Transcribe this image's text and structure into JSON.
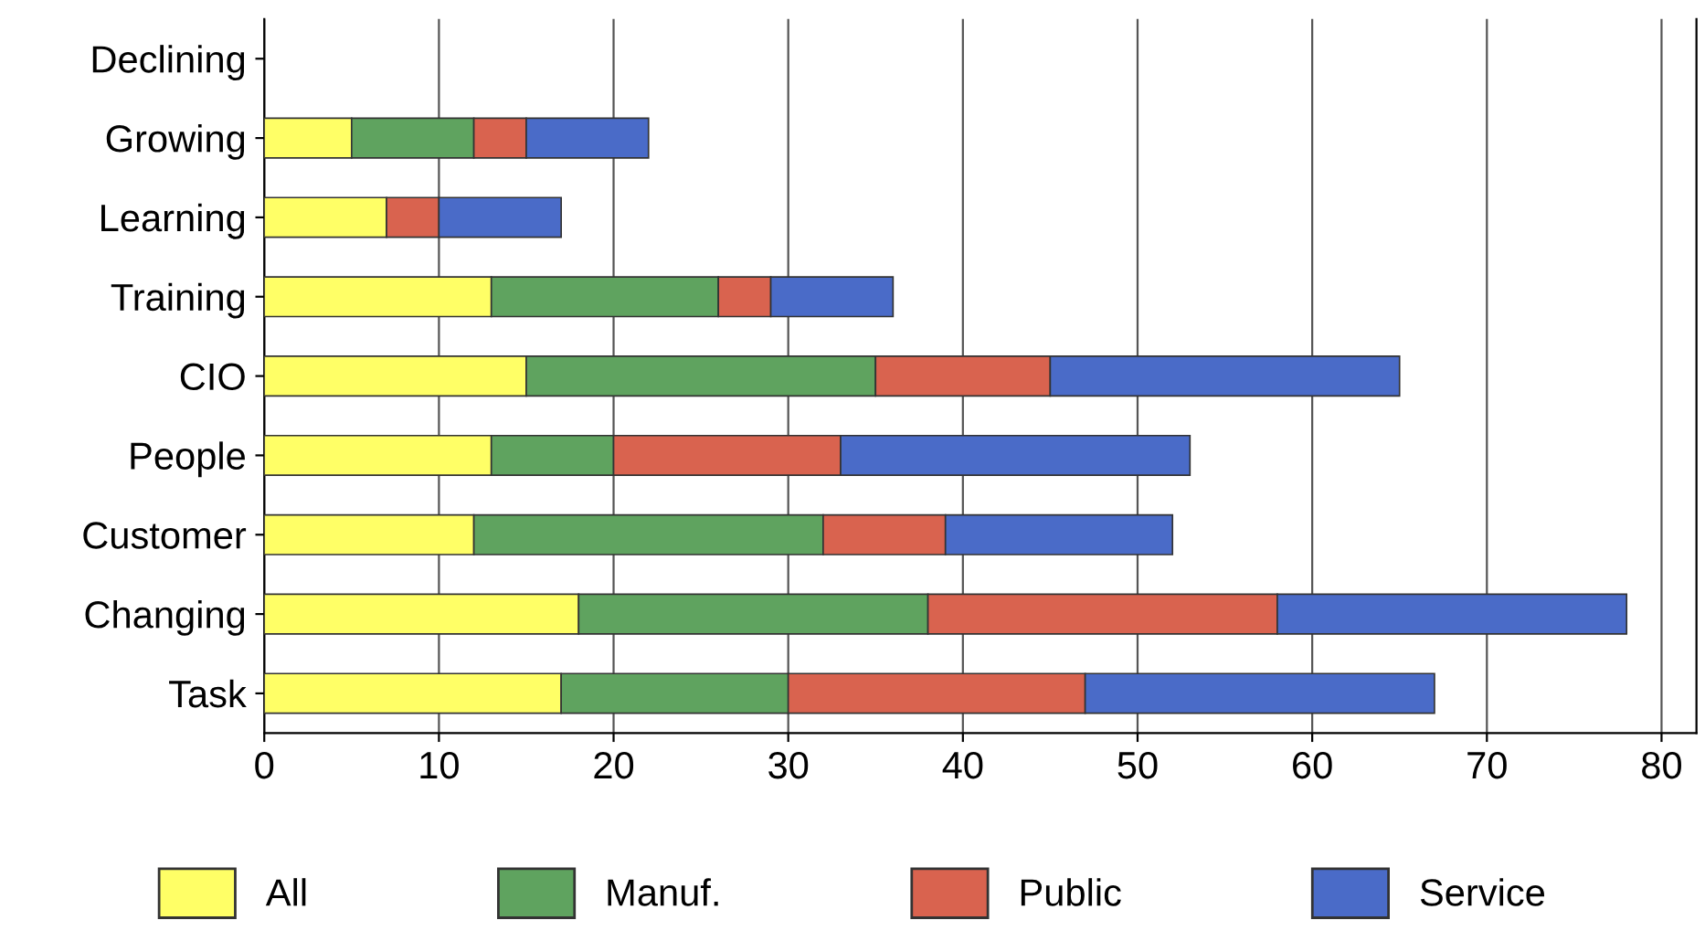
{
  "chart_data": {
    "type": "bar",
    "orientation": "horizontal",
    "stacked": true,
    "categories": [
      "Declining",
      "Growing",
      "Learning",
      "Training",
      "CIO",
      "People",
      "Customer",
      "Changing",
      "Task"
    ],
    "series": [
      {
        "name": "All",
        "color": "#ffff66",
        "values": [
          null,
          5,
          7,
          13,
          15,
          13,
          12,
          18,
          17
        ]
      },
      {
        "name": "Manuf.",
        "color": "#5fa35f",
        "values": [
          null,
          7,
          null,
          13,
          20,
          7,
          20,
          20,
          13
        ]
      },
      {
        "name": "Public",
        "color": "#d9634f",
        "values": [
          null,
          3,
          3,
          3,
          10,
          13,
          7,
          20,
          17
        ]
      },
      {
        "name": "Service",
        "color": "#4a6bc8",
        "values": [
          null,
          7,
          7,
          7,
          20,
          20,
          13,
          20,
          20
        ]
      }
    ],
    "xlim": [
      0,
      82
    ],
    "xticks": [
      0,
      10,
      20,
      30,
      40,
      50,
      60,
      70,
      80
    ],
    "grid": "x",
    "legend": "bottom"
  }
}
